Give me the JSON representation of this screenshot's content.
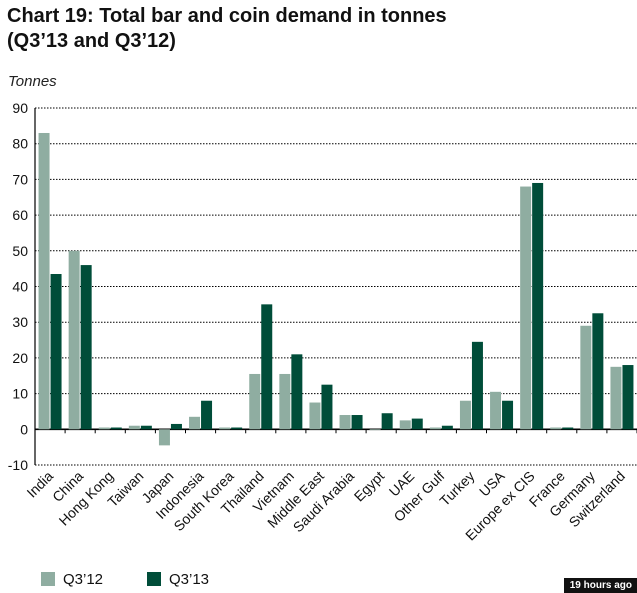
{
  "title_line1": "Chart 19: Total bar and coin demand in tonnes",
  "title_line2": "(Q3’13 and Q3’12)",
  "timestamp": "19 hours ago",
  "chart_data": {
    "type": "bar",
    "title": "Chart 19: Total bar and coin demand in tonnes (Q3’13 and Q3’12)",
    "ylabel": "Tonnes",
    "xlabel": "",
    "ylim": [
      -10,
      90
    ],
    "yticks": [
      90,
      80,
      70,
      60,
      50,
      40,
      30,
      20,
      10,
      0,
      -10
    ],
    "grid": true,
    "legend_position": "bottom-left",
    "categories": [
      "India",
      "China",
      "Hong Kong",
      "Taiwan",
      "Japan",
      "Indonesia",
      "South Korea",
      "Thailand",
      "Vietnam",
      "Middle East",
      "Saudi Arabia",
      "Egypt",
      "UAE",
      "Other Gulf",
      "Turkey",
      "USA",
      "Europe ex CIS",
      "France",
      "Germany",
      "Switzerland"
    ],
    "series": [
      {
        "name": "Q3’12",
        "color": "#8fada1",
        "values": [
          83,
          50,
          0.5,
          1,
          -4.5,
          3.5,
          0.5,
          15.5,
          15.5,
          7.5,
          4,
          0,
          2.5,
          0.5,
          8,
          10.5,
          68,
          0.5,
          29,
          17.5
        ]
      },
      {
        "name": "Q3’13",
        "color": "#004d39",
        "values": [
          43.5,
          46,
          0.5,
          1,
          1.5,
          8,
          0.5,
          35,
          21,
          12.5,
          4,
          4.5,
          3,
          1,
          24.5,
          8,
          69,
          0.5,
          32.5,
          18
        ]
      }
    ]
  }
}
